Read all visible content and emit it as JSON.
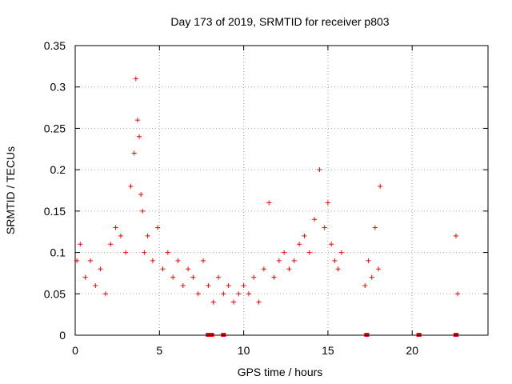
{
  "chart_data": {
    "type": "scatter",
    "title": "Day 173 of 2019, SRMTID for receiver p803",
    "xlabel": "GPS time / hours",
    "ylabel": "SRMTID / TECUs",
    "xlim": [
      0,
      24.5
    ],
    "ylim": [
      0,
      0.35
    ],
    "xticks": [
      0,
      5,
      10,
      15,
      20
    ],
    "xtick_labels": [
      "0",
      "5",
      "10",
      "15",
      "20"
    ],
    "yticks": [
      0,
      0.05,
      0.1,
      0.15,
      0.2,
      0.25,
      0.3,
      0.35
    ],
    "ytick_labels": [
      "0",
      "0.05",
      "0.1",
      "0.15",
      "0.2",
      "0.25",
      "0.3",
      "0.35"
    ],
    "grid": true,
    "marker": "+",
    "color": "#ff0000",
    "series": [
      {
        "name": "SRMTID",
        "x": [
          0.1,
          0.3,
          0.6,
          0.9,
          1.2,
          1.5,
          1.8,
          2.1,
          2.4,
          2.7,
          3.0,
          3.3,
          3.5,
          3.6,
          3.7,
          3.8,
          3.9,
          4.0,
          4.1,
          4.3,
          4.6,
          4.9,
          5.2,
          5.5,
          5.8,
          6.1,
          6.4,
          6.7,
          7.0,
          7.3,
          7.6,
          7.9,
          8.2,
          8.5,
          8.8,
          9.1,
          9.4,
          9.7,
          10.0,
          10.3,
          10.6,
          10.9,
          11.2,
          11.5,
          11.8,
          12.1,
          12.4,
          12.7,
          13.0,
          13.3,
          13.6,
          13.9,
          14.2,
          14.5,
          14.8,
          15.0,
          15.2,
          15.4,
          15.6,
          15.8,
          17.2,
          17.4,
          17.6,
          17.8,
          18.0,
          18.1,
          22.6,
          22.7
        ],
        "y": [
          0.09,
          0.11,
          0.07,
          0.09,
          0.06,
          0.08,
          0.05,
          0.11,
          0.13,
          0.12,
          0.1,
          0.18,
          0.22,
          0.31,
          0.26,
          0.24,
          0.17,
          0.15,
          0.1,
          0.12,
          0.09,
          0.13,
          0.08,
          0.1,
          0.07,
          0.09,
          0.06,
          0.08,
          0.07,
          0.05,
          0.09,
          0.06,
          0.04,
          0.07,
          0.05,
          0.06,
          0.04,
          0.05,
          0.06,
          0.05,
          0.07,
          0.04,
          0.08,
          0.16,
          0.07,
          0.09,
          0.1,
          0.08,
          0.09,
          0.11,
          0.12,
          0.1,
          0.14,
          0.2,
          0.13,
          0.16,
          0.11,
          0.09,
          0.08,
          0.1,
          0.06,
          0.09,
          0.07,
          0.13,
          0.08,
          0.18,
          0.12,
          0.05
        ]
      }
    ],
    "gaps_x": [
      7.9,
      8.1,
      8.8,
      17.3,
      20.4,
      22.6
    ]
  }
}
